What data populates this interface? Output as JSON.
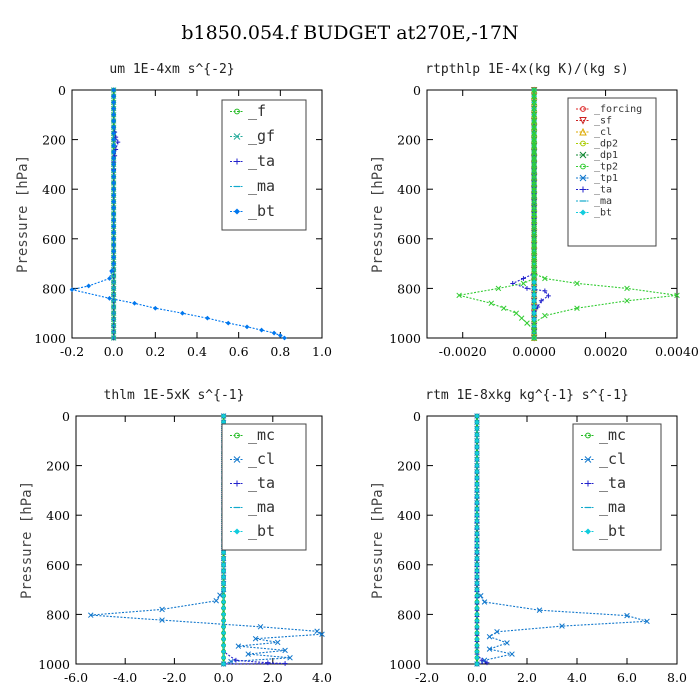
{
  "figure_title": "b1850.054.f  BUDGET at270E,-17N",
  "chart_data": [
    {
      "type": "line",
      "title": "um  1E-4xm s^{-2}",
      "ylabel": "Pressure [hPa]",
      "xlim": [
        -0.2,
        1.0
      ],
      "ylim": [
        1000,
        0
      ],
      "xticks": [
        "-0.2",
        "0.0",
        "0.2",
        "0.4",
        "0.6",
        "0.8",
        "1.0"
      ],
      "xtick_values": [
        -0.2,
        0.0,
        0.2,
        0.4,
        0.6,
        0.8,
        1.0
      ],
      "yticks": [
        "0",
        "200",
        "400",
        "600",
        "800",
        "1000"
      ],
      "ytick_values": [
        0,
        200,
        400,
        600,
        800,
        1000
      ],
      "legend": "top-right",
      "series": [
        {
          "name": "_f",
          "color": "#22bb22",
          "marker": "o",
          "x": [
            0,
            0,
            0,
            0,
            0,
            0,
            0,
            0,
            0,
            0,
            0
          ],
          "y": [
            0,
            100,
            200,
            300,
            400,
            500,
            600,
            700,
            800,
            900,
            1000
          ]
        },
        {
          "name": "_gf",
          "color": "#22aa99",
          "marker": "x",
          "x": [
            0,
            0,
            0,
            0,
            0,
            0,
            0,
            0,
            0,
            0,
            0
          ],
          "y": [
            0,
            100,
            200,
            300,
            400,
            500,
            600,
            700,
            800,
            900,
            1000
          ]
        },
        {
          "name": "_ta",
          "color": "#2222cc",
          "marker": "+",
          "x": [
            0,
            0,
            0.01,
            0.02,
            0.01,
            0,
            0,
            0,
            0,
            0
          ],
          "y": [
            0,
            150,
            190,
            210,
            240,
            290,
            350,
            500,
            700,
            1000
          ]
        },
        {
          "name": "_ma",
          "color": "#11aacc",
          "marker": "-",
          "x": [
            0,
            0,
            0,
            0,
            0,
            0
          ],
          "y": [
            0,
            200,
            400,
            600,
            800,
            1000
          ]
        },
        {
          "name": "_bt",
          "color": "#0077ee",
          "marker": "diamond",
          "x": [
            0,
            0,
            -0.02,
            -0.12,
            -0.2,
            -0.02,
            0.1,
            0.2,
            0.33,
            0.45,
            0.55,
            0.64,
            0.71,
            0.77,
            0.8,
            0.82
          ],
          "y": [
            0,
            700,
            760,
            790,
            805,
            840,
            860,
            880,
            900,
            920,
            940,
            955,
            968,
            980,
            990,
            1000
          ]
        }
      ]
    },
    {
      "type": "line",
      "title": "rtpthlp  1E-4x(kg K)/(kg s)",
      "ylabel": "Pressure [hPa]",
      "xlim": [
        -0.003,
        0.004
      ],
      "ylim": [
        1000,
        0
      ],
      "xticks": [
        "-0.0020",
        "0.0000",
        "0.0020",
        "0.0040"
      ],
      "xtick_values": [
        -0.002,
        0.0,
        0.002,
        0.004
      ],
      "yticks": [
        "0",
        "200",
        "400",
        "600",
        "800",
        "1000"
      ],
      "ytick_values": [
        0,
        200,
        400,
        600,
        800,
        1000
      ],
      "legend": "top-right",
      "series": [
        {
          "name": "_forcing",
          "color": "#dd2222",
          "marker": "o",
          "x": [
            0,
            0,
            0,
            0,
            0,
            0
          ],
          "y": [
            0,
            200,
            400,
            600,
            800,
            1000
          ]
        },
        {
          "name": "_sf",
          "color": "#cc2222",
          "marker": "triangle-down",
          "x": [
            0,
            0,
            0,
            0,
            0,
            0
          ],
          "y": [
            0,
            200,
            400,
            600,
            800,
            1000
          ]
        },
        {
          "name": "_cl",
          "color": "#ddaa00",
          "marker": "triangle",
          "x": [
            0,
            0,
            0,
            0,
            0,
            0
          ],
          "y": [
            0,
            200,
            400,
            600,
            800,
            1000
          ]
        },
        {
          "name": "_dp2",
          "color": "#aacc00",
          "marker": "o",
          "x": [
            0,
            0,
            0,
            0,
            0,
            0
          ],
          "y": [
            0,
            200,
            400,
            600,
            800,
            1000
          ]
        },
        {
          "name": "_dp1",
          "color": "#118833",
          "marker": "x",
          "x": [
            0,
            0,
            0,
            0,
            0,
            0
          ],
          "y": [
            0,
            200,
            400,
            600,
            800,
            1000
          ]
        },
        {
          "name": "_tp2",
          "color": "#33cc33",
          "marker": "o",
          "x": [
            0,
            0,
            0,
            0,
            0,
            0
          ],
          "y": [
            0,
            200,
            400,
            600,
            800,
            1000
          ]
        },
        {
          "name": "_tp1",
          "color": "#1177cc",
          "marker": "star",
          "x": [
            0,
            0,
            0,
            0,
            0,
            0
          ],
          "y": [
            0,
            200,
            400,
            600,
            800,
            1000
          ]
        },
        {
          "name": "_ta",
          "color": "#2222cc",
          "marker": "+",
          "x": [
            0,
            0,
            -0.0003,
            -0.0006,
            -0.0002,
            0.0003,
            0.0004,
            0.0002,
            0,
            0
          ],
          "y": [
            0,
            740,
            760,
            780,
            800,
            810,
            830,
            850,
            900,
            1000
          ]
        },
        {
          "name": "_ma",
          "color": "#11aacc",
          "marker": "-",
          "x": [
            0,
            0,
            0,
            0,
            0,
            0
          ],
          "y": [
            0,
            200,
            400,
            600,
            800,
            1000
          ]
        },
        {
          "name": "_bt",
          "color": "#11ccdd",
          "marker": "diamond",
          "x": [
            0,
            0,
            0,
            0,
            0,
            0
          ],
          "y": [
            0,
            200,
            400,
            600,
            800,
            1000
          ]
        },
        {
          "name": "",
          "color": "#33cc33",
          "marker": "x",
          "x": [
            0,
            0,
            0.0003,
            0.0012,
            0.0026,
            0.004,
            0.0026,
            0.0012,
            0.0003,
            0,
            0
          ],
          "y": [
            0,
            740,
            760,
            780,
            800,
            828,
            850,
            880,
            910,
            940,
            1000
          ]
        },
        {
          "name": "",
          "color": "#33cc33",
          "marker": "x",
          "x": [
            0,
            0,
            -0.0003,
            -0.001,
            -0.0021,
            -0.0012,
            -0.0005,
            -0.0002,
            0,
            0
          ],
          "y": [
            0,
            760,
            780,
            800,
            828,
            860,
            900,
            940,
            970,
            1000
          ]
        }
      ]
    },
    {
      "type": "line",
      "title": "thlm  1E-5xK s^{-1}",
      "ylabel": "Pressure [hPa]",
      "xlim": [
        -6.0,
        4.0
      ],
      "ylim": [
        1000,
        0
      ],
      "xticks": [
        "-6.0",
        "-4.0",
        "-2.0",
        "0.0",
        "2.0",
        "4.0"
      ],
      "xtick_values": [
        -6,
        -4,
        -2,
        0,
        2,
        4
      ],
      "yticks": [
        "0",
        "200",
        "400",
        "600",
        "800",
        "1000"
      ],
      "ytick_values": [
        0,
        200,
        400,
        600,
        800,
        1000
      ],
      "legend": "top-right",
      "series": [
        {
          "name": "_mc",
          "color": "#22bb22",
          "marker": "o",
          "x": [
            0,
            0,
            0,
            0,
            0,
            0,
            0,
            0,
            0,
            0,
            0
          ],
          "y": [
            0,
            100,
            200,
            300,
            400,
            500,
            600,
            700,
            800,
            900,
            1000
          ]
        },
        {
          "name": "_cl",
          "color": "#1177cc",
          "marker": "x",
          "x": [
            0,
            0,
            -0.3,
            -2.5,
            -5.4,
            -2.5,
            1.5,
            3.8,
            4.0,
            1.3,
            2.2,
            0.6,
            2.5,
            1.0,
            2.7,
            0.3,
            0
          ],
          "y": [
            0,
            700,
            745,
            780,
            803,
            823,
            850,
            868,
            880,
            898,
            913,
            928,
            945,
            960,
            975,
            990,
            1000
          ]
        },
        {
          "name": "_ta",
          "color": "#2222cc",
          "marker": "+",
          "x": [
            0,
            0,
            0.5,
            1.8,
            2.5,
            0
          ],
          "y": [
            0,
            950,
            985,
            995,
            998,
            1000
          ]
        },
        {
          "name": "_ma",
          "color": "#11aacc",
          "marker": "-",
          "x": [
            0,
            0,
            0,
            0,
            0,
            0
          ],
          "y": [
            0,
            200,
            400,
            600,
            800,
            1000
          ]
        },
        {
          "name": "_bt",
          "color": "#11ccdd",
          "marker": "diamond",
          "x": [
            0,
            0,
            0,
            0,
            0,
            0
          ],
          "y": [
            0,
            200,
            400,
            600,
            800,
            1000
          ]
        }
      ]
    },
    {
      "type": "line",
      "title": "rtm  1E-8xkg kg^{-1} s^{-1}",
      "ylabel": "Pressure [hPa]",
      "xlim": [
        -2.0,
        8.0
      ],
      "ylim": [
        1000,
        0
      ],
      "xticks": [
        "-2.0",
        "0.0",
        "2.0",
        "4.0",
        "6.0",
        "8.0"
      ],
      "xtick_values": [
        -2,
        0,
        2,
        4,
        6,
        8
      ],
      "yticks": [
        "0",
        "200",
        "400",
        "600",
        "800",
        "1000"
      ],
      "ytick_values": [
        0,
        200,
        400,
        600,
        800,
        1000
      ],
      "legend": "top-right",
      "series": [
        {
          "name": "_mc",
          "color": "#22bb22",
          "marker": "o",
          "x": [
            0,
            0,
            0,
            0,
            0,
            0,
            0,
            0,
            0,
            0,
            0
          ],
          "y": [
            0,
            100,
            200,
            300,
            400,
            500,
            600,
            700,
            800,
            900,
            1000
          ]
        },
        {
          "name": "_cl",
          "color": "#1177cc",
          "marker": "x",
          "x": [
            0,
            0,
            0.3,
            2.5,
            6.0,
            6.8,
            3.4,
            0.8,
            0.5,
            1.2,
            0.5,
            1.4,
            0.3,
            0
          ],
          "y": [
            0,
            700,
            750,
            783,
            805,
            828,
            847,
            870,
            890,
            915,
            940,
            960,
            985,
            1000
          ]
        },
        {
          "name": "_ta",
          "color": "#2222cc",
          "marker": "+",
          "x": [
            0,
            0,
            0.2,
            0.4,
            0
          ],
          "y": [
            0,
            960,
            985,
            995,
            1000
          ]
        },
        {
          "name": "_ma",
          "color": "#11aacc",
          "marker": "-",
          "x": [
            0,
            0,
            0,
            0,
            0,
            0
          ],
          "y": [
            0,
            200,
            400,
            600,
            800,
            1000
          ]
        },
        {
          "name": "_bt",
          "color": "#11ccdd",
          "marker": "diamond",
          "x": [
            0,
            0,
            0,
            0,
            0,
            0
          ],
          "y": [
            0,
            200,
            400,
            600,
            800,
            1000
          ]
        }
      ]
    }
  ]
}
